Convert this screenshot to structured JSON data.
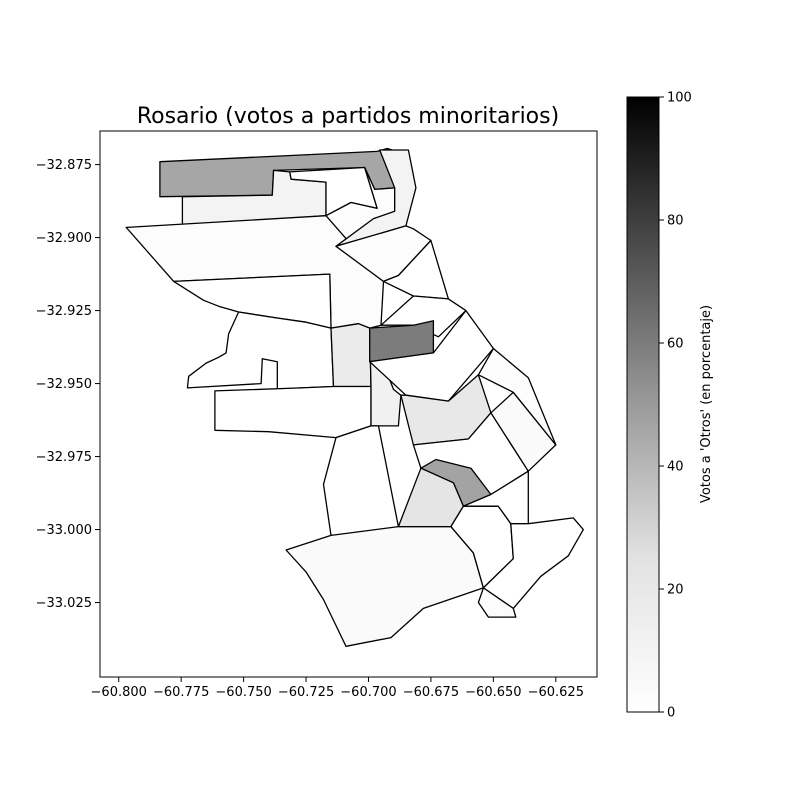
{
  "chart_data": {
    "type": "choropleth",
    "title": "Rosario (votos a partidos minoritarios)",
    "xlabel": "",
    "ylabel": "",
    "xlim": [
      -60.8075,
      -60.6085
    ],
    "ylim": [
      -33.0505,
      -32.8635
    ],
    "x_ticks": [
      -60.8,
      -60.775,
      -60.75,
      -60.725,
      -60.7,
      -60.675,
      -60.65,
      -60.625
    ],
    "x_tick_labels": [
      "−60.800",
      "−60.775",
      "−60.750",
      "−60.725",
      "−60.700",
      "−60.675",
      "−60.650",
      "−60.625"
    ],
    "y_ticks": [
      -32.875,
      -32.9,
      -32.925,
      -32.95,
      -32.975,
      -33.0,
      -33.025
    ],
    "y_tick_labels": [
      "−32.875",
      "−32.900",
      "−32.925",
      "−32.950",
      "−32.975",
      "−33.000",
      "−33.025"
    ],
    "colorbar": {
      "label": "Votos a 'Otros' (en porcentaje)",
      "range": [
        0,
        100
      ],
      "ticks": [
        0,
        20,
        40,
        60,
        80,
        100
      ],
      "tick_labels": [
        "0",
        "20",
        "40",
        "60",
        "80",
        "100"
      ],
      "colormap": "Greys"
    },
    "grid": false,
    "regions": [
      {
        "value": 46,
        "coords": [
          [
            -60.7835,
            -32.874
          ],
          [
            -60.6965,
            -32.8705
          ],
          [
            -60.6925,
            -32.8695
          ],
          [
            -60.6905,
            -32.87
          ],
          [
            -60.6895,
            -32.883
          ],
          [
            -60.6975,
            -32.8835
          ],
          [
            -60.7015,
            -32.876
          ],
          [
            -60.738,
            -32.877
          ],
          [
            -60.7385,
            -32.8855
          ],
          [
            -60.7835,
            -32.886
          ]
        ]
      },
      {
        "value": 10,
        "coords": [
          [
            -60.7745,
            -32.886
          ],
          [
            -60.7385,
            -32.8855
          ],
          [
            -60.738,
            -32.877
          ],
          [
            -60.7315,
            -32.8775
          ],
          [
            -60.731,
            -32.88
          ],
          [
            -60.717,
            -32.881
          ],
          [
            -60.717,
            -32.8925
          ],
          [
            -60.7745,
            -32.896
          ]
        ]
      },
      {
        "value": 0,
        "coords": [
          [
            -60.7315,
            -32.8775
          ],
          [
            -60.7015,
            -32.876
          ],
          [
            -60.6965,
            -32.89
          ],
          [
            -60.707,
            -32.888
          ],
          [
            -60.717,
            -32.8925
          ],
          [
            -60.717,
            -32.881
          ],
          [
            -60.731,
            -32.88
          ]
        ]
      },
      {
        "value": 3,
        "coords": [
          [
            -60.7015,
            -32.876
          ],
          [
            -60.6975,
            -32.8835
          ],
          [
            -60.6895,
            -32.883
          ],
          [
            -60.6895,
            -32.891
          ],
          [
            -60.685,
            -32.896
          ],
          [
            -60.713,
            -32.903
          ],
          [
            -60.717,
            -32.8925
          ],
          [
            -60.707,
            -32.888
          ],
          [
            -60.6965,
            -32.89
          ]
        ]
      },
      {
        "value": 3,
        "coords": [
          [
            -60.797,
            -32.8965
          ],
          [
            -60.717,
            -32.8925
          ],
          [
            -60.694,
            -32.915
          ],
          [
            -60.695,
            -32.93
          ],
          [
            -60.6995,
            -32.931
          ],
          [
            -60.704,
            -32.9295
          ],
          [
            -60.715,
            -32.931
          ],
          [
            -60.7155,
            -32.9125
          ],
          [
            -60.778,
            -32.915
          ]
        ]
      },
      {
        "value": 0,
        "coords": [
          [
            -60.778,
            -32.915
          ],
          [
            -60.7155,
            -32.9125
          ],
          [
            -60.715,
            -32.931
          ],
          [
            -60.725,
            -32.929
          ],
          [
            -60.737,
            -32.9275
          ],
          [
            -60.752,
            -32.9255
          ],
          [
            -60.76,
            -32.9235
          ],
          [
            -60.766,
            -32.9215
          ]
        ]
      },
      {
        "value": 0,
        "coords": [
          [
            -60.752,
            -32.9255
          ],
          [
            -60.737,
            -32.9275
          ],
          [
            -60.725,
            -32.929
          ],
          [
            -60.715,
            -32.931
          ],
          [
            -60.714,
            -32.951
          ],
          [
            -60.727,
            -32.9515
          ],
          [
            -60.7365,
            -32.952
          ],
          [
            -60.7365,
            -32.9425
          ],
          [
            -60.7425,
            -32.9415
          ],
          [
            -60.743,
            -32.95
          ],
          [
            -60.7725,
            -32.9515
          ],
          [
            -60.772,
            -32.9475
          ],
          [
            -60.765,
            -32.943
          ],
          [
            -60.76,
            -32.941
          ],
          [
            -60.757,
            -32.9395
          ],
          [
            -60.756,
            -32.933
          ]
        ]
      },
      {
        "value": 17,
        "coords": [
          [
            -60.715,
            -32.931
          ],
          [
            -60.704,
            -32.9295
          ],
          [
            -60.6995,
            -32.931
          ],
          [
            -60.699,
            -32.951
          ],
          [
            -60.714,
            -32.951
          ]
        ]
      },
      {
        "value": 0,
        "coords": [
          [
            -60.699,
            -32.951
          ],
          [
            -60.714,
            -32.951
          ],
          [
            -60.727,
            -32.9515
          ],
          [
            -60.7615,
            -32.9525
          ],
          [
            -60.7615,
            -32.966
          ],
          [
            -60.74,
            -32.9665
          ],
          [
            -60.713,
            -32.9685
          ],
          [
            -60.699,
            -32.9645
          ]
        ]
      },
      {
        "value": 12,
        "coords": [
          [
            -60.6995,
            -32.931
          ],
          [
            -60.699,
            -32.951
          ],
          [
            -60.699,
            -32.9645
          ],
          [
            -60.688,
            -32.9645
          ],
          [
            -60.687,
            -32.954
          ],
          [
            -60.69,
            -32.952
          ]
        ]
      },
      {
        "value": 0,
        "coords": [
          [
            -60.696,
            -32.9645
          ],
          [
            -60.699,
            -32.9645
          ],
          [
            -60.713,
            -32.9685
          ],
          [
            -60.718,
            -32.9845
          ],
          [
            -60.715,
            -33.002
          ],
          [
            -60.699,
            -33.002
          ],
          [
            -60.688,
            -32.999
          ]
        ]
      },
      {
        "value": 4,
        "coords": [
          [
            -60.688,
            -32.999
          ],
          [
            -60.715,
            -33.002
          ],
          [
            -60.733,
            -33.007
          ],
          [
            -60.725,
            -33.0145
          ],
          [
            -60.718,
            -33.024
          ],
          [
            -60.709,
            -33.04
          ],
          [
            -60.691,
            -33.037
          ],
          [
            -60.678,
            -33.027
          ],
          [
            -60.654,
            -33.02
          ],
          [
            -60.658,
            -33.008
          ],
          [
            -60.667,
            -32.999
          ]
        ]
      },
      {
        "value": 10,
        "coords": [
          [
            -60.6955,
            -32.87
          ],
          [
            -60.6895,
            -32.883
          ],
          [
            -60.6895,
            -32.891
          ],
          [
            -60.698,
            -32.8935
          ],
          [
            -60.713,
            -32.903
          ],
          [
            -60.685,
            -32.896
          ],
          [
            -60.681,
            -32.883
          ],
          [
            -60.684,
            -32.87
          ]
        ]
      },
      {
        "value": 3,
        "coords": [
          [
            -60.685,
            -32.896
          ],
          [
            -60.713,
            -32.903
          ],
          [
            -60.694,
            -32.915
          ],
          [
            -60.688,
            -32.913
          ],
          [
            -60.675,
            -32.901
          ],
          [
            -60.682,
            -32.897
          ]
        ]
      },
      {
        "value": 0,
        "coords": [
          [
            -60.694,
            -32.915
          ],
          [
            -60.688,
            -32.913
          ],
          [
            -60.675,
            -32.901
          ],
          [
            -60.668,
            -32.921
          ],
          [
            -60.682,
            -32.92
          ]
        ]
      },
      {
        "value": 0,
        "coords": [
          [
            -60.682,
            -32.92
          ],
          [
            -60.668,
            -32.921
          ],
          [
            -60.661,
            -32.925
          ],
          [
            -60.672,
            -32.934
          ],
          [
            -60.682,
            -32.93
          ],
          [
            -60.695,
            -32.93
          ]
        ]
      },
      {
        "value": 60,
        "coords": [
          [
            -60.6995,
            -32.931
          ],
          [
            -60.6995,
            -32.9425
          ],
          [
            -60.674,
            -32.9395
          ],
          [
            -60.674,
            -32.9285
          ],
          [
            -60.682,
            -32.93
          ]
        ]
      },
      {
        "value": 0,
        "coords": [
          [
            -60.6995,
            -32.9425
          ],
          [
            -60.674,
            -32.9395
          ],
          [
            -60.661,
            -32.925
          ],
          [
            -60.65,
            -32.938
          ],
          [
            -60.668,
            -32.956
          ],
          [
            -60.685,
            -32.954
          ]
        ]
      },
      {
        "value": 20,
        "coords": [
          [
            -60.687,
            -32.954
          ],
          [
            -60.685,
            -32.954
          ],
          [
            -60.668,
            -32.956
          ],
          [
            -60.656,
            -32.947
          ],
          [
            -60.651,
            -32.96
          ],
          [
            -60.66,
            -32.969
          ],
          [
            -60.682,
            -32.971
          ]
        ]
      },
      {
        "value": 0,
        "coords": [
          [
            -60.682,
            -32.971
          ],
          [
            -60.66,
            -32.969
          ],
          [
            -60.651,
            -32.96
          ],
          [
            -60.636,
            -32.98
          ],
          [
            -60.651,
            -32.988
          ],
          [
            -60.666,
            -32.984
          ],
          [
            -60.679,
            -32.979
          ]
        ]
      },
      {
        "value": 4,
        "coords": [
          [
            -60.651,
            -32.96
          ],
          [
            -60.636,
            -32.98
          ],
          [
            -60.625,
            -32.971
          ],
          [
            -60.642,
            -32.953
          ]
        ]
      },
      {
        "value": 2,
        "coords": [
          [
            -60.65,
            -32.938
          ],
          [
            -60.636,
            -32.948
          ],
          [
            -60.625,
            -32.971
          ],
          [
            -60.642,
            -32.953
          ],
          [
            -60.656,
            -32.947
          ]
        ]
      },
      {
        "value": 47,
        "coords": [
          [
            -60.679,
            -32.979
          ],
          [
            -60.666,
            -32.984
          ],
          [
            -60.662,
            -32.992
          ],
          [
            -60.651,
            -32.988
          ],
          [
            -60.659,
            -32.979
          ],
          [
            -60.673,
            -32.976
          ]
        ]
      },
      {
        "value": 22,
        "coords": [
          [
            -60.688,
            -32.999
          ],
          [
            -60.679,
            -32.979
          ],
          [
            -60.666,
            -32.984
          ],
          [
            -60.662,
            -32.992
          ],
          [
            -60.667,
            -32.999
          ]
        ]
      },
      {
        "value": 0,
        "coords": [
          [
            -60.662,
            -32.992
          ],
          [
            -60.667,
            -32.999
          ],
          [
            -60.658,
            -33.008
          ],
          [
            -60.654,
            -33.02
          ],
          [
            -60.642,
            -33.01
          ],
          [
            -60.643,
            -32.998
          ],
          [
            -60.648,
            -32.992
          ]
        ]
      },
      {
        "value": 0,
        "coords": [
          [
            -60.651,
            -32.988
          ],
          [
            -60.662,
            -32.992
          ],
          [
            -60.648,
            -32.992
          ],
          [
            -60.643,
            -32.998
          ],
          [
            -60.636,
            -32.998
          ],
          [
            -60.636,
            -32.98
          ]
        ]
      },
      {
        "value": 0,
        "coords": [
          [
            -60.643,
            -32.998
          ],
          [
            -60.642,
            -33.01
          ],
          [
            -60.654,
            -33.02
          ],
          [
            -60.642,
            -33.027
          ],
          [
            -60.631,
            -33.016
          ],
          [
            -60.62,
            -33.009
          ],
          [
            -60.614,
            -33.0
          ],
          [
            -60.618,
            -32.996
          ],
          [
            -60.636,
            -32.998
          ]
        ]
      },
      {
        "value": 3,
        "coords": [
          [
            -60.654,
            -33.02
          ],
          [
            -60.642,
            -33.027
          ],
          [
            -60.641,
            -33.03
          ],
          [
            -60.652,
            -33.03
          ],
          [
            -60.656,
            -33.025
          ]
        ]
      }
    ]
  }
}
